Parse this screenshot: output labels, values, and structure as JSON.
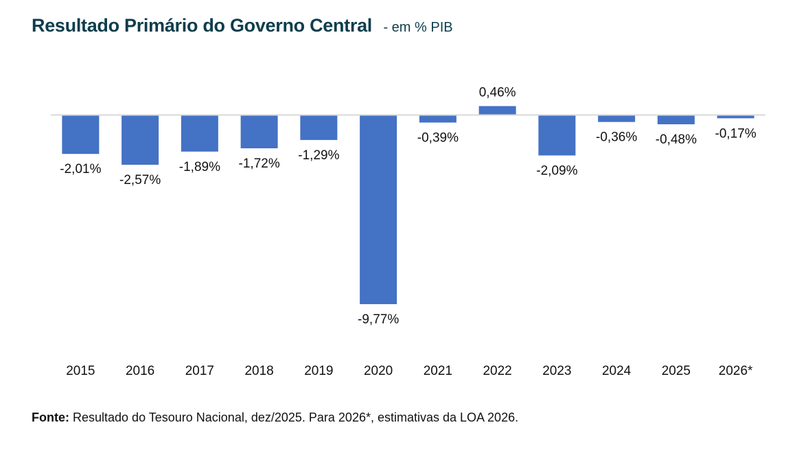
{
  "title": "Resultado Primário do Governo Central",
  "subtitle": "- em % PIB",
  "source": {
    "label": "Fonte:",
    "text": "Resultado do Tesouro Nacional, dez/2025. Para 2026*, estimativas da LOA 2026."
  },
  "colors": {
    "bar": "#4472c4",
    "axis": "#d9d9d9",
    "title": "#0e3d4c"
  },
  "chart_data": {
    "type": "bar",
    "title": "Resultado Primário do Governo Central - em % PIB",
    "xlabel": "",
    "ylabel": "% PIB",
    "categories": [
      "2015",
      "2016",
      "2017",
      "2018",
      "2019",
      "2020",
      "2021",
      "2022",
      "2023",
      "2024",
      "2025",
      "2026*"
    ],
    "values": [
      -2.01,
      -2.57,
      -1.89,
      -1.72,
      -1.29,
      -9.77,
      -0.39,
      0.46,
      -2.09,
      -0.36,
      -0.48,
      -0.17
    ],
    "data_labels": [
      "-2,01%",
      "-2,57%",
      "-1,89%",
      "-1,72%",
      "-1,29%",
      "-9,77%",
      "-0,39%",
      "0,46%",
      "-2,09%",
      "-0,36%",
      "-0,48%",
      "-0,17%"
    ],
    "ylim": [
      -10,
      1
    ],
    "grid": false,
    "legend": "none",
    "y_axis_visible": false
  }
}
